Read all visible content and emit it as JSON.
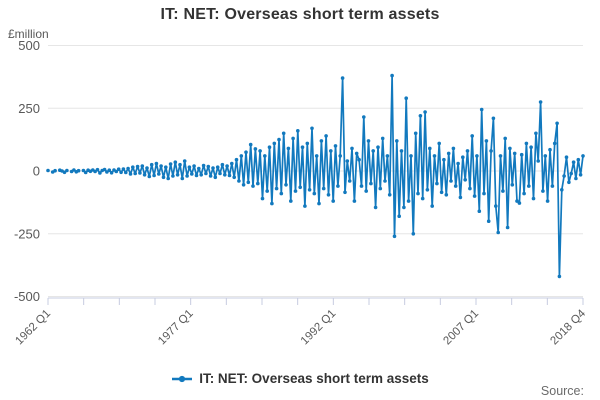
{
  "title": "IT: NET: Overseas short term assets",
  "y_axis_unit": "£million",
  "legend": {
    "label": "IT: NET: Overseas short term assets"
  },
  "source_label": "Source:",
  "colors": {
    "series": "#1279be",
    "gridline": "#e6e6e6",
    "axis": "#c7cce0",
    "tick_label": "#595959",
    "title": "#333333",
    "legend_text": "#333333",
    "source_text": "#6b6b6b"
  },
  "chart_data": {
    "type": "line",
    "title": "IT: NET: Overseas short term assets",
    "xlabel": "",
    "ylabel": "£million",
    "frequency": "quarterly",
    "x_start": "1962 Q1",
    "x_end": "2018 Q4",
    "ylim": [
      -500,
      500
    ],
    "y_ticks": [
      500,
      250,
      0,
      -250,
      -500
    ],
    "x_tick_count": 16,
    "x_tick_labels": [
      {
        "tick": 0,
        "label": "1962 Q1"
      },
      {
        "tick": 4,
        "label": "1977 Q1"
      },
      {
        "tick": 8,
        "label": "1992 Q1"
      },
      {
        "tick": 12,
        "label": "2007 Q1"
      },
      {
        "tick": 15,
        "label": "2018 Q4"
      }
    ],
    "legend_position": "bottom",
    "grid": true,
    "series": [
      {
        "name": "IT: NET: Overseas short term assets",
        "values": [
          2,
          null,
          -4,
          1,
          null,
          3,
          0,
          -5,
          2,
          null,
          -2,
          4,
          -3,
          1,
          null,
          2,
          -6,
          3,
          -1,
          4,
          -2,
          5,
          -8,
          2,
          6,
          -4,
          3,
          -7,
          4,
          -2,
          7,
          -5,
          8,
          -6,
          10,
          -12,
          15,
          -10,
          18,
          -8,
          20,
          -15,
          12,
          -22,
          25,
          -18,
          30,
          -12,
          20,
          -25,
          15,
          -30,
          28,
          -20,
          35,
          -15,
          25,
          -30,
          40,
          -20,
          15,
          -12,
          20,
          -18,
          10,
          -15,
          22,
          -10,
          18,
          -20,
          12,
          -25,
          15,
          -10,
          25,
          -15,
          20,
          -18,
          30,
          -25,
          45,
          -40,
          60,
          -55,
          75,
          -45,
          105,
          -60,
          88,
          -50,
          80,
          -110,
          60,
          -80,
          95,
          -130,
          110,
          -70,
          125,
          -90,
          150,
          -55,
          90,
          -120,
          130,
          -80,
          160,
          -65,
          95,
          -140,
          110,
          -75,
          170,
          -90,
          60,
          -130,
          120,
          -70,
          140,
          -95,
          80,
          -120,
          100,
          -60,
          60,
          370,
          -85,
          40,
          -40,
          90,
          -120,
          70,
          45,
          -60,
          215,
          -80,
          120,
          -50,
          80,
          -145,
          95,
          -70,
          130,
          -40,
          60,
          -95,
          380,
          -260,
          120,
          -180,
          80,
          -145,
          290,
          -120,
          60,
          -250,
          150,
          -90,
          220,
          -110,
          235,
          -75,
          90,
          -140,
          60,
          -50,
          110,
          -85,
          45,
          -95,
          70,
          -40,
          90,
          -60,
          30,
          -105,
          55,
          -35,
          80,
          -70,
          140,
          -100,
          60,
          -160,
          245,
          -90,
          120,
          -200,
          80,
          210,
          -140,
          -245,
          60,
          -80,
          130,
          -225,
          90,
          -55,
          70,
          -120,
          -128,
          65,
          -90,
          110,
          -60,
          95,
          -110,
          150,
          40,
          275,
          -80,
          60,
          -120,
          85,
          -60,
          110,
          190,
          -420,
          -75,
          -20,
          55,
          -45,
          -10,
          35,
          -30,
          45,
          -15,
          60
        ]
      }
    ]
  }
}
